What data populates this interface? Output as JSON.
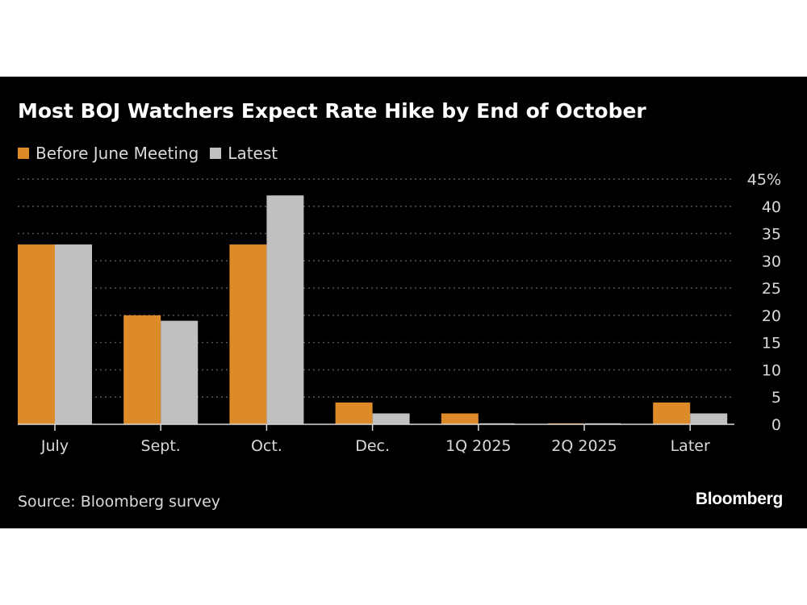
{
  "title": "Most BOJ Watchers Expect Rate Hike by End of October",
  "source": "Source: Bloomberg survey",
  "brand": "Bloomberg",
  "colors": {
    "background": "#000000",
    "before": "#dd8a28",
    "latest": "#c0c0c0",
    "text": "#d9d9d9",
    "grid": "#555555"
  },
  "chart_data": {
    "type": "bar",
    "title": "Most BOJ Watchers Expect Rate Hike by End of October",
    "categories": [
      "July",
      "Sept.",
      "Oct.",
      "Dec.",
      "1Q 2025",
      "2Q 2025",
      "Later"
    ],
    "series": [
      {
        "name": "Before June Meeting",
        "color": "#dd8a28",
        "values": [
          33,
          20,
          33,
          4,
          2,
          0,
          4
        ]
      },
      {
        "name": "Latest",
        "color": "#c0c0c0",
        "values": [
          33,
          19,
          42,
          2,
          0,
          0,
          2
        ]
      }
    ],
    "ylim": [
      0,
      45
    ],
    "yticks": [
      0,
      5,
      10,
      15,
      20,
      25,
      30,
      35,
      40,
      45
    ],
    "ytick_labels": [
      "0",
      "5",
      "10",
      "15",
      "20",
      "25",
      "30",
      "35",
      "40",
      "45%"
    ],
    "y_axis_side": "right",
    "grid": "horizontal dotted",
    "legend_position": "top-left"
  }
}
